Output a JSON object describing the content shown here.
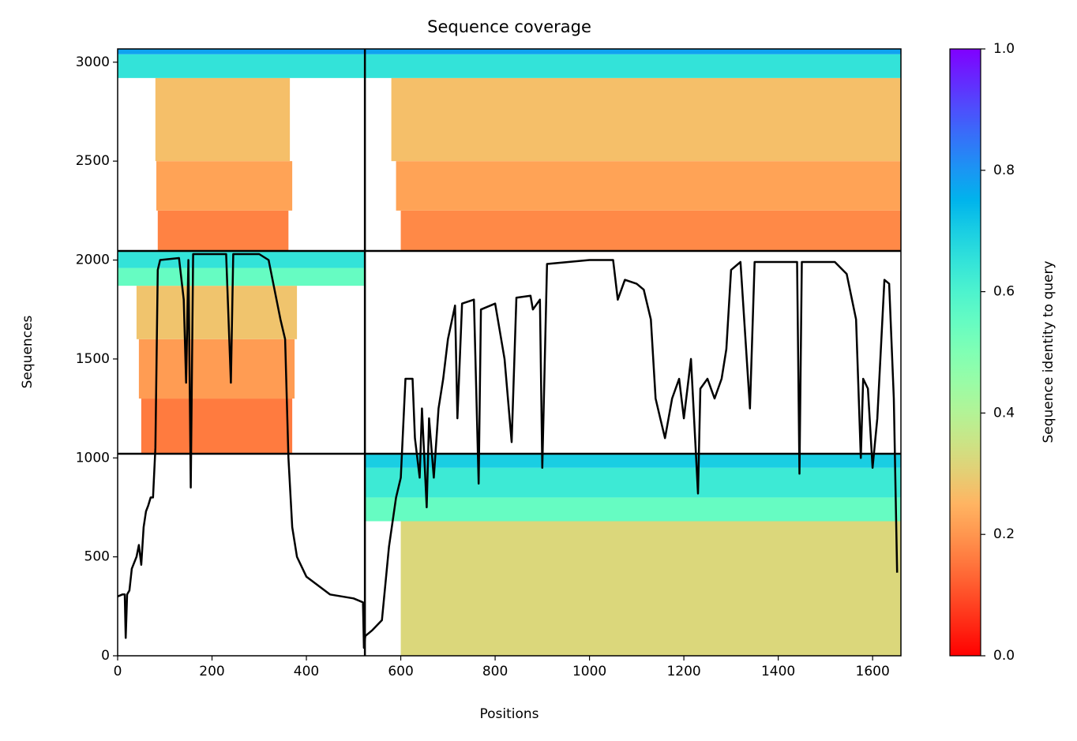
{
  "chart_data": {
    "type": "coverage",
    "title": "Sequence coverage",
    "xlabel": "Positions",
    "ylabel": "Sequences",
    "colorbar_label": "Sequence identity to query",
    "colormap": "rainbow_r",
    "xlim": [
      0,
      1660
    ],
    "ylim": [
      0,
      3067
    ],
    "xticks": [
      0,
      200,
      400,
      600,
      800,
      1000,
      1200,
      1400,
      1600
    ],
    "yticks": [
      0,
      500,
      1000,
      1500,
      2000,
      2500,
      3000
    ],
    "clim": [
      0,
      1
    ],
    "cticks": [
      {
        "value": 0,
        "label": "0.0"
      },
      0.2,
      0.4,
      0.6,
      0.8,
      {
        "value": 1,
        "label": "1.0"
      }
    ],
    "chain_boundaries": {
      "x": [
        524
      ],
      "y": [
        1021,
        2046
      ]
    },
    "regions": [
      {
        "x": [
          85,
          362
        ],
        "y": [
          2046,
          2250
        ],
        "identity": 0.17
      },
      {
        "x": [
          82,
          370
        ],
        "y": [
          2250,
          2500
        ],
        "identity": 0.22
      },
      {
        "x": [
          80,
          365
        ],
        "y": [
          2500,
          2920
        ],
        "identity": 0.27
      },
      {
        "x": [
          0,
          524
        ],
        "y": [
          2920,
          3040
        ],
        "identity": 0.65
      },
      {
        "x": [
          0,
          524
        ],
        "y": [
          3040,
          3067
        ],
        "identity": 0.78
      },
      {
        "x": [
          600,
          1660
        ],
        "y": [
          2046,
          2250
        ],
        "identity": 0.18
      },
      {
        "x": [
          590,
          1660
        ],
        "y": [
          2250,
          2500
        ],
        "identity": 0.22
      },
      {
        "x": [
          580,
          1660
        ],
        "y": [
          2500,
          2920
        ],
        "identity": 0.27
      },
      {
        "x": [
          524,
          1660
        ],
        "y": [
          2920,
          3040
        ],
        "identity": 0.65
      },
      {
        "x": [
          524,
          1660
        ],
        "y": [
          3040,
          3067
        ],
        "identity": 0.78
      },
      {
        "x": [
          50,
          370
        ],
        "y": [
          1021,
          1300
        ],
        "identity": 0.16
      },
      {
        "x": [
          45,
          375
        ],
        "y": [
          1300,
          1600
        ],
        "identity": 0.21
      },
      {
        "x": [
          40,
          380
        ],
        "y": [
          1600,
          1870
        ],
        "identity": 0.28
      },
      {
        "x": [
          0,
          524
        ],
        "y": [
          1870,
          1960
        ],
        "identity": 0.55
      },
      {
        "x": [
          0,
          524
        ],
        "y": [
          1960,
          2046
        ],
        "identity": 0.65
      },
      {
        "x": [
          600,
          1660
        ],
        "y": [
          0,
          680
        ],
        "identity": 0.32
      },
      {
        "x": [
          524,
          1660
        ],
        "y": [
          680,
          800
        ],
        "identity": 0.55
      },
      {
        "x": [
          524,
          1660
        ],
        "y": [
          800,
          950
        ],
        "identity": 0.63
      },
      {
        "x": [
          524,
          1660
        ],
        "y": [
          950,
          1021
        ],
        "identity": 0.7
      }
    ],
    "coverage": {
      "x": [
        0,
        10,
        15,
        17,
        20,
        25,
        30,
        40,
        45,
        50,
        55,
        60,
        65,
        70,
        75,
        80,
        85,
        90,
        130,
        140,
        145,
        150,
        155,
        160,
        230,
        240,
        245,
        300,
        320,
        345,
        355,
        362,
        370,
        380,
        400,
        450,
        500,
        520,
        522,
        525,
        540,
        560,
        575,
        590,
        600,
        610,
        625,
        630,
        640,
        645,
        655,
        660,
        670,
        680,
        690,
        700,
        715,
        720,
        730,
        755,
        765,
        770,
        800,
        820,
        835,
        845,
        875,
        880,
        895,
        900,
        910,
        1000,
        1050,
        1060,
        1075,
        1100,
        1115,
        1130,
        1140,
        1150,
        1160,
        1175,
        1190,
        1200,
        1215,
        1230,
        1235,
        1250,
        1265,
        1280,
        1290,
        1300,
        1320,
        1340,
        1350,
        1440,
        1445,
        1450,
        1520,
        1545,
        1565,
        1575,
        1580,
        1590,
        1600,
        1610,
        1625,
        1635,
        1645,
        1652
      ],
      "y": [
        300,
        310,
        310,
        90,
        310,
        330,
        440,
        500,
        560,
        460,
        650,
        730,
        760,
        800,
        800,
        1050,
        1950,
        2000,
        2010,
        1800,
        1380,
        2000,
        850,
        2030,
        2030,
        1380,
        2030,
        2030,
        2000,
        1700,
        1600,
        1000,
        650,
        500,
        400,
        310,
        290,
        270,
        40,
        100,
        130,
        180,
        550,
        800,
        900,
        1400,
        1400,
        1100,
        900,
        1250,
        750,
        1200,
        900,
        1250,
        1400,
        1600,
        1770,
        1200,
        1780,
        1800,
        870,
        1750,
        1780,
        1500,
        1080,
        1810,
        1820,
        1750,
        1800,
        950,
        1980,
        2000,
        2000,
        1800,
        1900,
        1880,
        1850,
        1700,
        1300,
        1200,
        1100,
        1300,
        1400,
        1200,
        1500,
        820,
        1350,
        1400,
        1300,
        1400,
        1550,
        1950,
        1990,
        1250,
        1990,
        1990,
        920,
        1990,
        1990,
        1930,
        1700,
        1000,
        1400,
        1350,
        950,
        1200,
        1900,
        1880,
        1300,
        420
      ]
    }
  }
}
